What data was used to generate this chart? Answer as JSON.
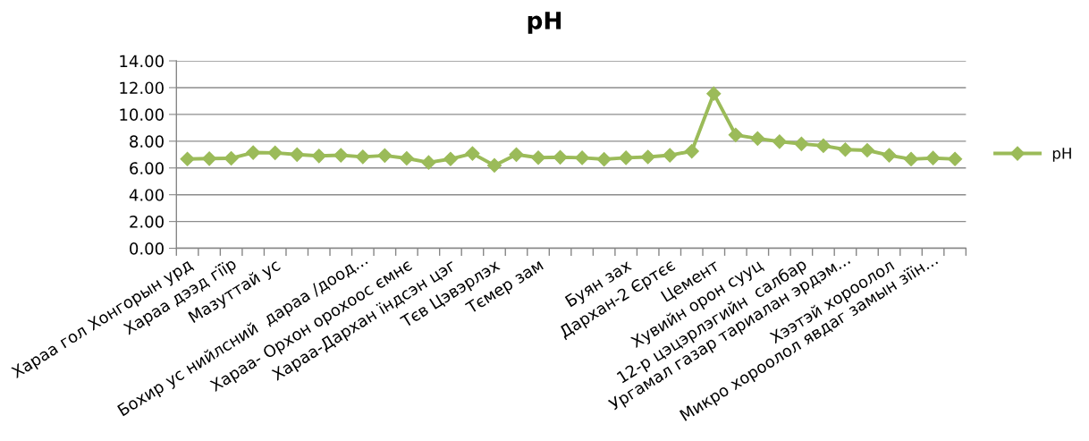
{
  "chart_data": {
    "type": "line",
    "title": "pH",
    "categories": [
      "Хараа гол Хонгорын урд",
      null,
      "Хараа дээд гїїр",
      null,
      "Мазуттай ус",
      null,
      null,
      null,
      "Бохир ус нийлсний  дараа /доод...",
      null,
      "Хараа- Орхон орохоос ємнє",
      null,
      "Хараа-Дархан їндсэн цэг",
      null,
      "Тєв Цэвэрлэх",
      null,
      "Тємер зам",
      null,
      null,
      null,
      "Буян зах",
      null,
      "Дархан-2 Єртєє",
      null,
      "Цемент",
      null,
      "Хувийн орон сууц",
      null,
      "12-р цэцэрлэгийн  салбар",
      null,
      "Ургамал газар тариалан эрдэм...",
      null,
      "Хээтэй хороолол",
      null,
      "Микро хороолол явдаг замын зїїн...",
      null
    ],
    "series": [
      {
        "name": "pH",
        "color": "#9bbb59",
        "values": [
          6.67,
          6.7,
          6.72,
          7.15,
          7.13,
          7.0,
          6.9,
          6.95,
          6.83,
          6.93,
          6.72,
          6.41,
          6.67,
          7.08,
          6.19,
          7.0,
          6.77,
          6.8,
          6.76,
          6.65,
          6.76,
          6.82,
          6.95,
          7.25,
          11.55,
          8.47,
          8.2,
          7.97,
          7.8,
          7.66,
          7.37,
          7.32,
          6.95,
          6.66,
          6.74,
          6.67
        ]
      }
    ],
    "ylim": [
      0,
      14
    ],
    "yticks": [
      {
        "value": 0,
        "label": "0.00"
      },
      {
        "value": 2,
        "label": "2.00"
      },
      {
        "value": 4,
        "label": "4.00"
      },
      {
        "value": 6,
        "label": "6.00"
      },
      {
        "value": 8,
        "label": "8.00"
      },
      {
        "value": 10,
        "label": "10.00"
      },
      {
        "value": 12,
        "label": "12.00"
      },
      {
        "value": 14,
        "label": "14.00"
      }
    ],
    "grid": "y",
    "legend": "right",
    "marker": "diamond",
    "line_style": "solid"
  }
}
